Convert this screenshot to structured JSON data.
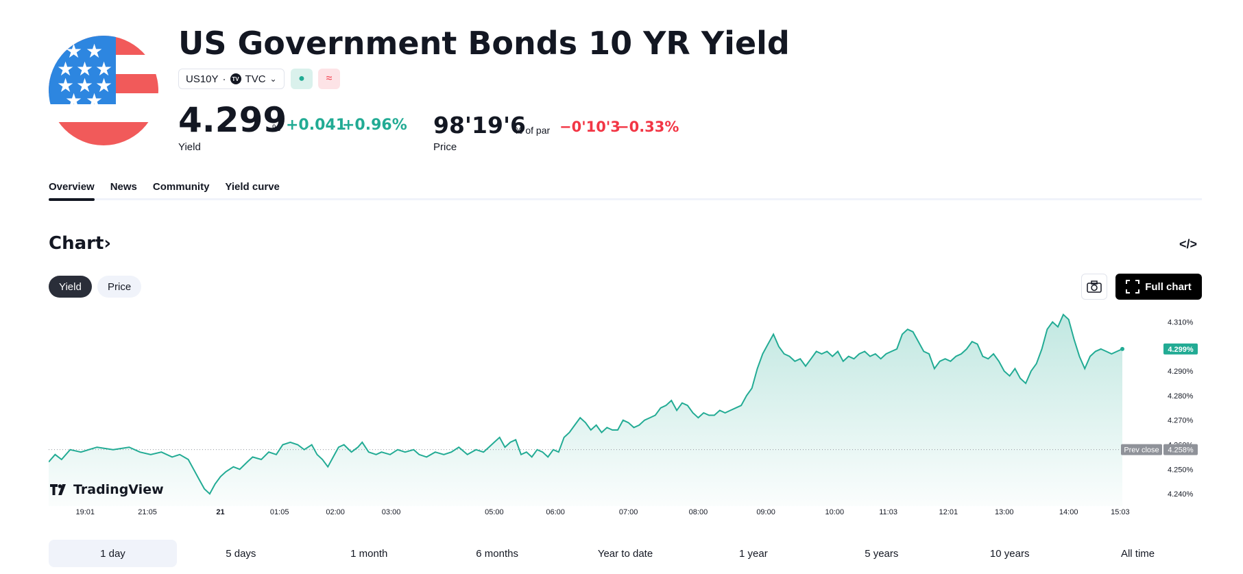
{
  "header": {
    "title": "US Government Bonds 10 YR Yield",
    "symbol": "US10Y",
    "separator": "·",
    "exchange": "TVC",
    "exchange_logo": "TV"
  },
  "yield": {
    "value": "4.299",
    "unit": "%",
    "change": "+0.041",
    "change_pct": "+0.96%",
    "label": "Yield"
  },
  "price": {
    "value": "98'19'6",
    "unit": "% of par",
    "change": "−0'10'3",
    "change_pct": "−0.33%",
    "label": "Price"
  },
  "tabs": [
    {
      "label": "Overview"
    },
    {
      "label": "News"
    },
    {
      "label": "Community"
    },
    {
      "label": "Yield curve"
    }
  ],
  "chart_section": {
    "title": "Chart",
    "toggle": [
      {
        "label": "Yield"
      },
      {
        "label": "Price"
      }
    ],
    "full_chart_label": "Full chart",
    "embed_icon": "</>",
    "tv_brand": "TradingView"
  },
  "chart_data": {
    "type": "area",
    "y_unit": "%",
    "ylim": [
      4.235,
      4.316
    ],
    "yticks": [
      "4.310%",
      "4.300%",
      "4.290%",
      "4.280%",
      "4.270%",
      "4.260%",
      "4.250%",
      "4.240%"
    ],
    "ytick_values": [
      4.31,
      4.3,
      4.29,
      4.28,
      4.27,
      4.26,
      4.25,
      4.24
    ],
    "xticks": [
      "19:01",
      "21:05",
      "21",
      "01:05",
      "02:00",
      "03:00",
      "05:00",
      "06:00",
      "07:00",
      "08:00",
      "09:00",
      "10:00",
      "11:03",
      "12:01",
      "13:00",
      "14:00",
      "15:03"
    ],
    "xtick_pos": [
      0.034,
      0.092,
      0.16,
      0.215,
      0.267,
      0.319,
      0.415,
      0.472,
      0.54,
      0.605,
      0.668,
      0.732,
      0.782,
      0.838,
      0.89,
      0.95,
      0.998
    ],
    "last_value": 4.299,
    "last_label": "4.299%",
    "prev_close": 4.258,
    "prev_close_label": "4.258%",
    "prev_close_text": "Prev close",
    "points": [
      [
        0.0,
        4.253
      ],
      [
        0.006,
        4.256
      ],
      [
        0.012,
        4.254
      ],
      [
        0.02,
        4.258
      ],
      [
        0.03,
        4.257
      ],
      [
        0.045,
        4.259
      ],
      [
        0.06,
        4.258
      ],
      [
        0.075,
        4.259
      ],
      [
        0.085,
        4.257
      ],
      [
        0.095,
        4.256
      ],
      [
        0.105,
        4.257
      ],
      [
        0.115,
        4.255
      ],
      [
        0.122,
        4.256
      ],
      [
        0.13,
        4.254
      ],
      [
        0.135,
        4.25
      ],
      [
        0.14,
        4.246
      ],
      [
        0.145,
        4.242
      ],
      [
        0.15,
        4.24
      ],
      [
        0.155,
        4.244
      ],
      [
        0.16,
        4.247
      ],
      [
        0.165,
        4.249
      ],
      [
        0.172,
        4.251
      ],
      [
        0.178,
        4.25
      ],
      [
        0.185,
        4.253
      ],
      [
        0.19,
        4.255
      ],
      [
        0.198,
        4.254
      ],
      [
        0.205,
        4.257
      ],
      [
        0.212,
        4.256
      ],
      [
        0.218,
        4.26
      ],
      [
        0.225,
        4.261
      ],
      [
        0.232,
        4.26
      ],
      [
        0.238,
        4.258
      ],
      [
        0.245,
        4.26
      ],
      [
        0.25,
        4.256
      ],
      [
        0.255,
        4.254
      ],
      [
        0.26,
        4.251
      ],
      [
        0.265,
        4.255
      ],
      [
        0.27,
        4.259
      ],
      [
        0.275,
        4.26
      ],
      [
        0.282,
        4.257
      ],
      [
        0.288,
        4.259
      ],
      [
        0.292,
        4.261
      ],
      [
        0.298,
        4.257
      ],
      [
        0.305,
        4.256
      ],
      [
        0.31,
        4.257
      ],
      [
        0.318,
        4.256
      ],
      [
        0.325,
        4.258
      ],
      [
        0.332,
        4.257
      ],
      [
        0.34,
        4.258
      ],
      [
        0.345,
        4.256
      ],
      [
        0.352,
        4.255
      ],
      [
        0.36,
        4.257
      ],
      [
        0.368,
        4.256
      ],
      [
        0.375,
        4.257
      ],
      [
        0.382,
        4.259
      ],
      [
        0.39,
        4.256
      ],
      [
        0.398,
        4.258
      ],
      [
        0.405,
        4.257
      ],
      [
        0.41,
        4.259
      ],
      [
        0.415,
        4.261
      ],
      [
        0.42,
        4.263
      ],
      [
        0.425,
        4.259
      ],
      [
        0.43,
        4.261
      ],
      [
        0.435,
        4.262
      ],
      [
        0.44,
        4.256
      ],
      [
        0.445,
        4.257
      ],
      [
        0.45,
        4.255
      ],
      [
        0.455,
        4.258
      ],
      [
        0.46,
        4.257
      ],
      [
        0.465,
        4.255
      ],
      [
        0.47,
        4.258
      ],
      [
        0.475,
        4.257
      ],
      [
        0.48,
        4.263
      ],
      [
        0.485,
        4.265
      ],
      [
        0.49,
        4.268
      ],
      [
        0.495,
        4.271
      ],
      [
        0.5,
        4.269
      ],
      [
        0.505,
        4.266
      ],
      [
        0.51,
        4.268
      ],
      [
        0.515,
        4.265
      ],
      [
        0.52,
        4.267
      ],
      [
        0.525,
        4.266
      ],
      [
        0.53,
        4.266
      ],
      [
        0.535,
        4.27
      ],
      [
        0.54,
        4.269
      ],
      [
        0.545,
        4.267
      ],
      [
        0.55,
        4.268
      ],
      [
        0.555,
        4.27
      ],
      [
        0.56,
        4.271
      ],
      [
        0.565,
        4.272
      ],
      [
        0.57,
        4.275
      ],
      [
        0.575,
        4.276
      ],
      [
        0.58,
        4.278
      ],
      [
        0.585,
        4.274
      ],
      [
        0.59,
        4.277
      ],
      [
        0.595,
        4.276
      ],
      [
        0.6,
        4.273
      ],
      [
        0.605,
        4.271
      ],
      [
        0.61,
        4.273
      ],
      [
        0.615,
        4.272
      ],
      [
        0.62,
        4.272
      ],
      [
        0.625,
        4.274
      ],
      [
        0.63,
        4.273
      ],
      [
        0.635,
        4.274
      ],
      [
        0.64,
        4.275
      ],
      [
        0.645,
        4.276
      ],
      [
        0.65,
        4.28
      ],
      [
        0.655,
        4.283
      ],
      [
        0.66,
        4.291
      ],
      [
        0.665,
        4.297
      ],
      [
        0.67,
        4.301
      ],
      [
        0.675,
        4.305
      ],
      [
        0.68,
        4.3
      ],
      [
        0.685,
        4.297
      ],
      [
        0.69,
        4.296
      ],
      [
        0.695,
        4.294
      ],
      [
        0.7,
        4.295
      ],
      [
        0.705,
        4.292
      ],
      [
        0.71,
        4.295
      ],
      [
        0.715,
        4.298
      ],
      [
        0.72,
        4.297
      ],
      [
        0.725,
        4.298
      ],
      [
        0.73,
        4.296
      ],
      [
        0.735,
        4.298
      ],
      [
        0.74,
        4.294
      ],
      [
        0.745,
        4.296
      ],
      [
        0.75,
        4.295
      ],
      [
        0.755,
        4.297
      ],
      [
        0.76,
        4.298
      ],
      [
        0.765,
        4.296
      ],
      [
        0.77,
        4.297
      ],
      [
        0.775,
        4.295
      ],
      [
        0.78,
        4.297
      ],
      [
        0.785,
        4.298
      ],
      [
        0.79,
        4.299
      ],
      [
        0.795,
        4.305
      ],
      [
        0.8,
        4.307
      ],
      [
        0.805,
        4.306
      ],
      [
        0.81,
        4.302
      ],
      [
        0.815,
        4.298
      ],
      [
        0.82,
        4.297
      ],
      [
        0.825,
        4.291
      ],
      [
        0.83,
        4.294
      ],
      [
        0.835,
        4.295
      ],
      [
        0.84,
        4.294
      ],
      [
        0.845,
        4.296
      ],
      [
        0.85,
        4.297
      ],
      [
        0.855,
        4.299
      ],
      [
        0.86,
        4.302
      ],
      [
        0.865,
        4.301
      ],
      [
        0.87,
        4.296
      ],
      [
        0.875,
        4.295
      ],
      [
        0.88,
        4.297
      ],
      [
        0.885,
        4.294
      ],
      [
        0.89,
        4.29
      ],
      [
        0.895,
        4.288
      ],
      [
        0.9,
        4.291
      ],
      [
        0.905,
        4.287
      ],
      [
        0.91,
        4.285
      ],
      [
        0.915,
        4.29
      ],
      [
        0.92,
        4.293
      ],
      [
        0.925,
        4.299
      ],
      [
        0.93,
        4.307
      ],
      [
        0.935,
        4.31
      ],
      [
        0.94,
        4.308
      ],
      [
        0.945,
        4.313
      ],
      [
        0.95,
        4.311
      ],
      [
        0.955,
        4.303
      ],
      [
        0.96,
        4.296
      ],
      [
        0.965,
        4.291
      ],
      [
        0.97,
        4.296
      ],
      [
        0.975,
        4.298
      ],
      [
        0.98,
        4.299
      ],
      [
        0.985,
        4.298
      ],
      [
        0.99,
        4.297
      ],
      [
        0.995,
        4.298
      ],
      [
        1.0,
        4.299
      ]
    ],
    "line_color": "#22ab94",
    "prev_close_color": "#8f9299",
    "grid": false
  },
  "periods": [
    "1 day",
    "5 days",
    "1 month",
    "6 months",
    "Year to date",
    "1 year",
    "5 years",
    "10 years",
    "All time"
  ],
  "colors": {
    "positive": "#22ab94",
    "negative": "#f23645",
    "accent": "#131722"
  }
}
